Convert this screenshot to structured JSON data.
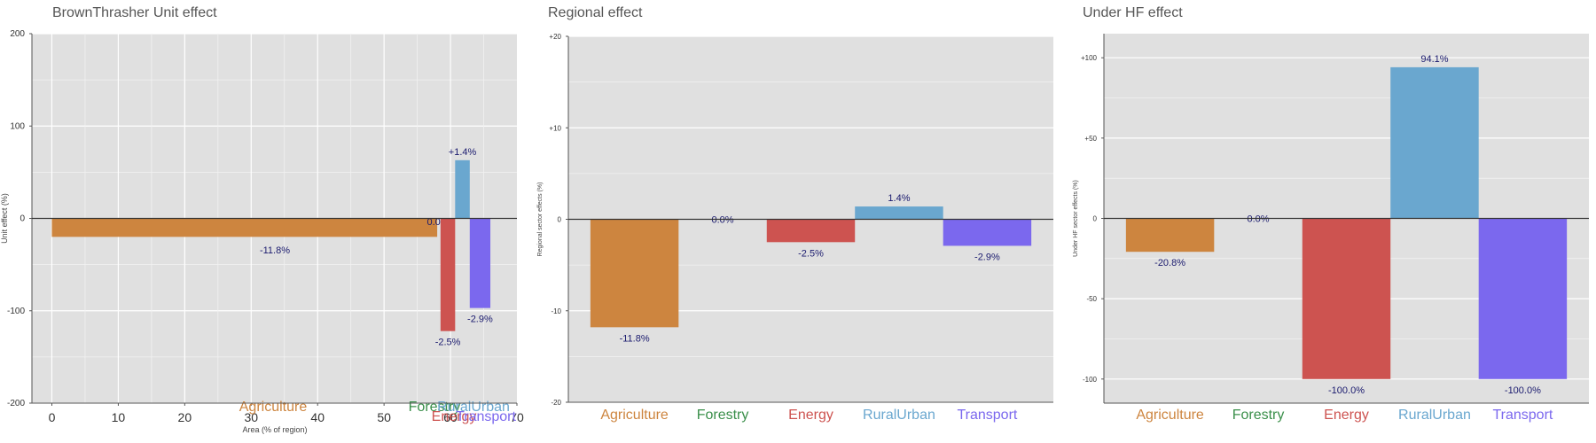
{
  "colors": {
    "Agriculture": "#CD853F",
    "Forestry": "#3A8F4A",
    "Energy": "#CD5350",
    "RuralUrban": "#6AA7CF",
    "Transport": "#7B68EE"
  },
  "chart_data": [
    {
      "type": "bar",
      "title": "BrownThrasher Unit effect",
      "xlabel": "Area (% of region)",
      "ylabel": "Unit effect (%)",
      "xlim": [
        -3,
        70
      ],
      "ylim": [
        -200,
        200
      ],
      "xticks": [
        0,
        10,
        20,
        30,
        40,
        50,
        60,
        70
      ],
      "yticks": [
        200,
        100,
        0,
        -100,
        -200
      ],
      "ytick_labels": [
        "200",
        "100",
        "0",
        "-100",
        "-200"
      ],
      "bars": [
        {
          "name": "Agriculture",
          "x0": 0,
          "x1": 58,
          "value": -20,
          "label": "-11.8%"
        },
        {
          "name": "Forestry",
          "x0": 58.2,
          "x1": 58.5,
          "value": 0,
          "label": "0.0%"
        },
        {
          "name": "Energy",
          "x0": 58.5,
          "x1": 60.7,
          "value": -122,
          "label": "-2.5%"
        },
        {
          "name": "RuralUrban",
          "x0": 60.7,
          "x1": 62.9,
          "value": 63,
          "label": "+1.4%"
        },
        {
          "name": "Transport",
          "x0": 62.9,
          "x1": 66,
          "value": -97,
          "label": "-2.9%"
        }
      ],
      "category_labels": [
        {
          "name": "Agriculture",
          "text": "Agriculture"
        },
        {
          "name": "Forestry",
          "text": "Forestry"
        },
        {
          "name": "Energy",
          "text": "Energy"
        },
        {
          "name": "RuralUrban",
          "text": "RuralUrban"
        },
        {
          "name": "Transport",
          "text": "Transport"
        }
      ]
    },
    {
      "type": "bar",
      "title": "Regional effect",
      "ylabel": "Regional sector effects (%)",
      "ylim": [
        -20,
        20
      ],
      "yticks": [
        20,
        10,
        0,
        -10,
        -20
      ],
      "ytick_labels": [
        "+20",
        "+10",
        "0",
        "-10",
        "-20"
      ],
      "categories": [
        "Agriculture",
        "Forestry",
        "Energy",
        "RuralUrban",
        "Transport"
      ],
      "values": [
        -11.8,
        0.0,
        -2.5,
        1.4,
        -2.9
      ],
      "labels": [
        "-11.8%",
        "0.0%",
        "-2.5%",
        "1.4%",
        "-2.9%"
      ]
    },
    {
      "type": "bar",
      "title": "Under HF effect",
      "ylabel": "Under HF sector effects (%)",
      "ylim": [
        -115,
        115
      ],
      "yticks": [
        100,
        50,
        0,
        -50,
        -100
      ],
      "ytick_labels": [
        "+100",
        "+50",
        "0",
        "-50",
        "-100"
      ],
      "categories": [
        "Agriculture",
        "Forestry",
        "Energy",
        "RuralUrban",
        "Transport"
      ],
      "values": [
        -20.8,
        0.0,
        -100.0,
        94.1,
        -100.0
      ],
      "labels": [
        "-20.8%",
        "0.0%",
        "-100.0%",
        "94.1%",
        "-100.0%"
      ]
    }
  ]
}
